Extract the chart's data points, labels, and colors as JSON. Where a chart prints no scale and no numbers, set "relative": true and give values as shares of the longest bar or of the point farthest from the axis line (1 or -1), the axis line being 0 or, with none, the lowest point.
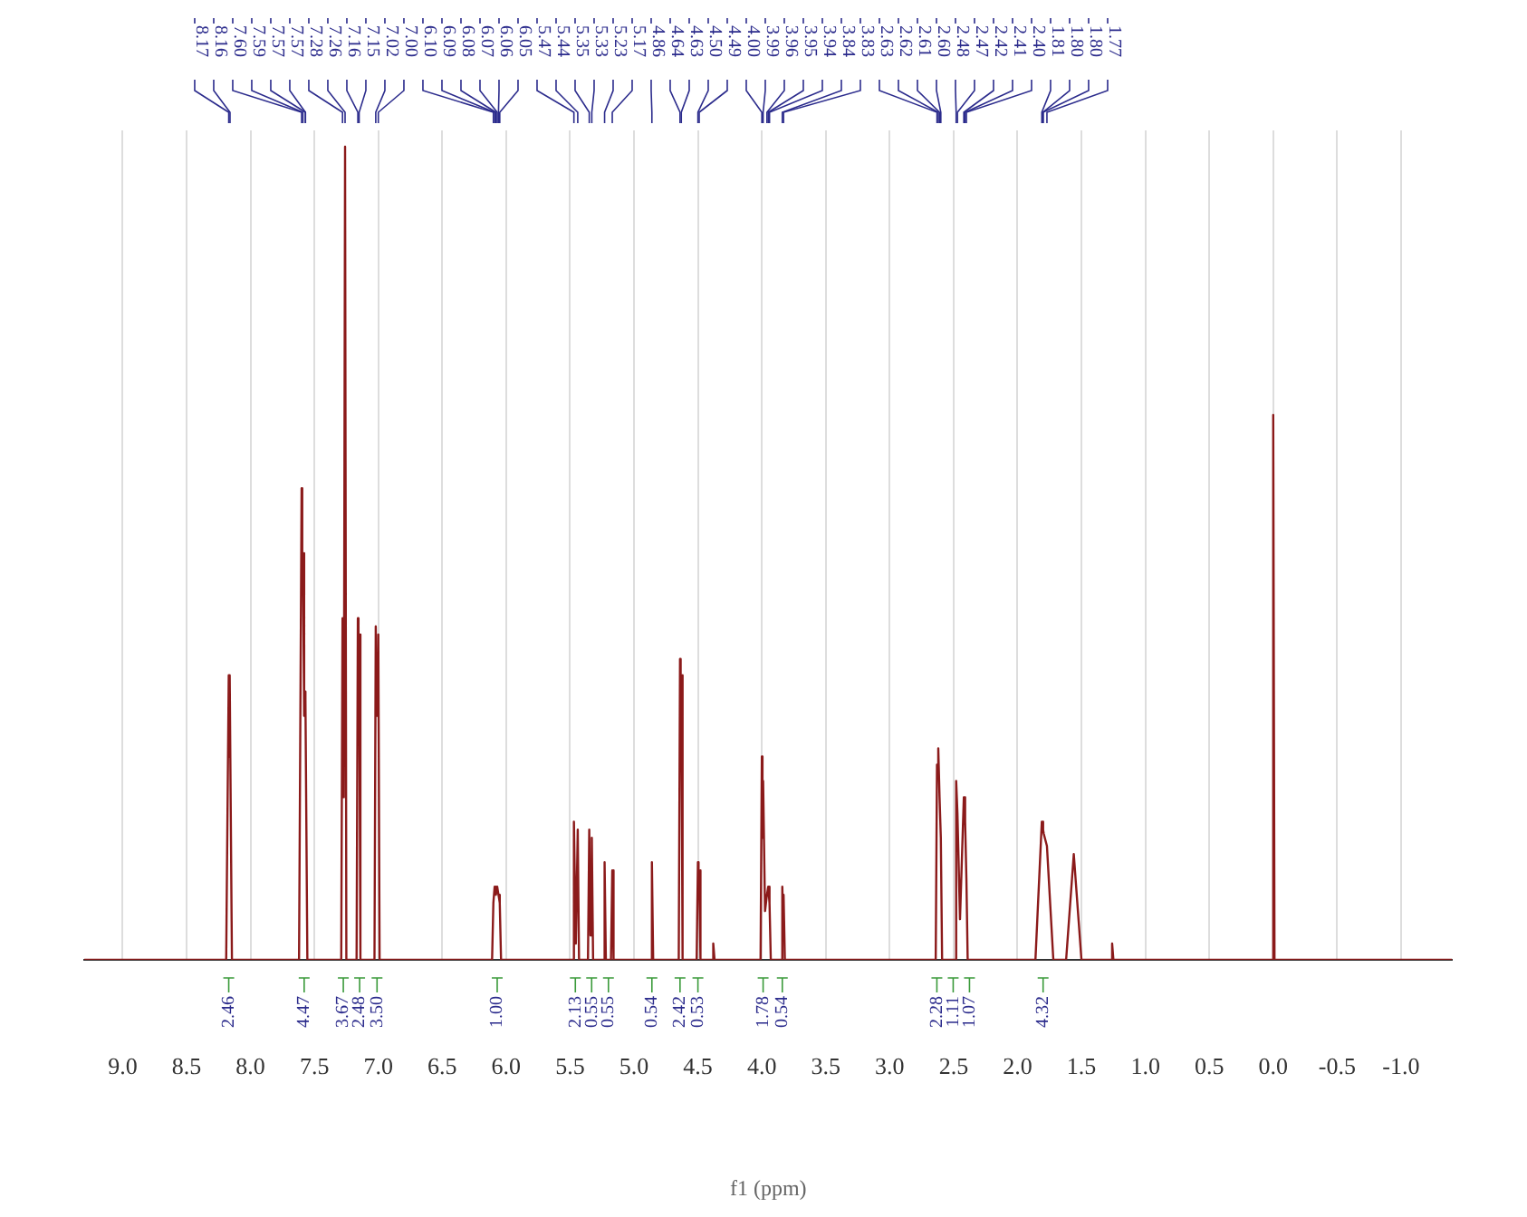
{
  "chart_data": {
    "type": "line",
    "xlabel": "f1 (ppm)",
    "relative": true,
    "marker": "none",
    "grid": "x",
    "xlim": [
      9.3,
      -1.4
    ],
    "xticks": [
      {
        "value": 9,
        "label": "9.0"
      },
      8.5,
      {
        "value": 8,
        "label": "8.0"
      },
      7.5,
      {
        "value": 7,
        "label": "7.0"
      },
      6.5,
      {
        "value": 6,
        "label": "6.0"
      },
      5.5,
      {
        "value": 5,
        "label": "5.0"
      },
      4.5,
      {
        "value": 4,
        "label": "4.0"
      },
      3.5,
      {
        "value": 3,
        "label": "3.0"
      },
      2.5,
      {
        "value": 2,
        "label": "2.0"
      },
      1.5,
      {
        "value": 1,
        "label": "1.0"
      },
      0.5,
      {
        "value": 0,
        "label": "0.0"
      },
      -0.5,
      {
        "value": -1,
        "label": "-1.0"
      }
    ],
    "x": [
      9.3,
      8.19,
      8.17,
      8.165,
      8.16,
      8.145,
      7.62,
      7.6,
      7.595,
      7.59,
      7.58,
      7.575,
      7.57,
      7.555,
      7.29,
      7.28,
      7.27,
      7.26,
      7.25,
      7.17,
      7.16,
      7.155,
      7.15,
      7.14,
      7.03,
      7.02,
      7.01,
      7.0,
      6.99,
      6.11,
      6.1,
      6.09,
      6.08,
      6.07,
      6.06,
      6.05,
      6.04,
      5.48,
      5.47,
      5.455,
      5.44,
      5.43,
      5.36,
      5.35,
      5.34,
      5.33,
      5.32,
      5.24,
      5.23,
      5.22,
      5.18,
      5.17,
      5.16,
      4.87,
      4.86,
      4.85,
      4.65,
      4.64,
      4.635,
      4.63,
      4.62,
      4.51,
      4.5,
      4.495,
      4.49,
      4.48,
      4.39,
      4.38,
      4.37,
      4.01,
      4.0,
      3.995,
      3.99,
      3.975,
      3.96,
      3.95,
      3.94,
      3.93,
      3.85,
      3.84,
      3.835,
      3.83,
      3.82,
      2.64,
      2.63,
      2.62,
      2.61,
      2.6,
      2.59,
      2.49,
      2.48,
      2.47,
      2.45,
      2.42,
      2.41,
      2.4,
      2.39,
      1.86,
      1.81,
      1.8,
      1.795,
      1.77,
      1.72,
      1.62,
      1.56,
      1.5,
      1.27,
      1.26,
      1.25,
      0.01,
      0.0,
      -0.01,
      -1.4
    ],
    "series": [
      {
        "color": "#8b1a1a",
        "values": [
          0,
          0,
          0.35,
          0.25,
          0.35,
          0,
          0,
          0.58,
          0.45,
          0.5,
          0.3,
          0.33,
          0.32,
          0,
          0,
          0.42,
          0.2,
          1,
          0,
          0,
          0.42,
          0.3,
          0.4,
          0,
          0,
          0.41,
          0.3,
          0.4,
          0,
          0,
          0.07,
          0.09,
          0.08,
          0.09,
          0.08,
          0.07,
          0,
          0,
          0.17,
          0.02,
          0.16,
          0,
          0,
          0.16,
          0.03,
          0.15,
          0,
          0,
          0.12,
          0,
          0,
          0.11,
          0,
          0,
          0.12,
          0,
          0,
          0.37,
          0.3,
          0.35,
          0,
          0,
          0.12,
          0.08,
          0.11,
          0,
          0,
          0.02,
          0,
          0,
          0.25,
          0.15,
          0.22,
          0.06,
          0.08,
          0.09,
          0.07,
          0,
          0,
          0.09,
          0.06,
          0.08,
          0,
          0,
          0.24,
          0.26,
          0.2,
          0.15,
          0,
          0,
          0.22,
          0.18,
          0.05,
          0.2,
          0.17,
          0.1,
          0,
          0,
          0.17,
          0.16,
          0.155,
          0.14,
          0,
          0,
          0.13,
          0,
          0,
          0.02,
          0,
          0,
          0.67,
          0,
          0
        ]
      }
    ],
    "annotations": [
      "8.17",
      "8.16",
      "7.60",
      "7.59",
      "7.57",
      "7.57",
      "7.28",
      "7.26",
      "7.16",
      "7.15",
      "7.02",
      "7.00",
      "6.10",
      "6.09",
      "6.08",
      "6.07",
      "6.06",
      "6.05",
      "5.47",
      "5.44",
      "5.35",
      "5.33",
      "5.23",
      "5.17",
      "4.86",
      "4.64",
      "4.63",
      "4.50",
      "4.49",
      "4.00",
      "3.99",
      "3.96",
      "3.95",
      "3.94",
      "3.84",
      "3.83",
      "2.63",
      "2.62",
      "2.61",
      "2.60",
      "2.48",
      "2.47",
      "2.42",
      "2.41",
      "2.40",
      "1.81",
      "1.80",
      "1.80",
      "1.77",
      {
        "text": "2.46",
        "x": 8.17,
        "y": 0
      },
      {
        "text": "4.47",
        "x": 7.58,
        "y": 0
      },
      {
        "text": "3.67",
        "x": 7.27,
        "y": 0
      },
      {
        "text": "2.48",
        "x": 7.15,
        "y": 0
      },
      {
        "text": "3.50",
        "x": 7.01,
        "y": 0
      },
      {
        "text": "1.00",
        "x": 6.07,
        "y": 0
      },
      {
        "text": "2.13",
        "x": 5.45,
        "y": 0
      },
      {
        "text": "0.55",
        "x": 5.34,
        "y": 0
      },
      {
        "text": "0.55",
        "x": 5.2,
        "y": 0
      },
      {
        "text": "0.54",
        "x": 4.86,
        "y": 0
      },
      {
        "text": "2.42",
        "x": 4.64,
        "y": 0
      },
      {
        "text": "0.53",
        "x": 4.5,
        "y": 0
      },
      {
        "text": "1.78",
        "x": 3.99,
        "y": 0
      },
      {
        "text": "0.54",
        "x": 3.84,
        "y": 0
      },
      {
        "text": "2.28",
        "x": 2.62,
        "y": 0
      },
      {
        "text": "1.11",
        "x": 2.48,
        "y": 0
      },
      {
        "text": "1.07",
        "x": 2.41,
        "y": 0
      },
      {
        "text": "4.32",
        "x": 1.8,
        "y": 0
      }
    ]
  }
}
